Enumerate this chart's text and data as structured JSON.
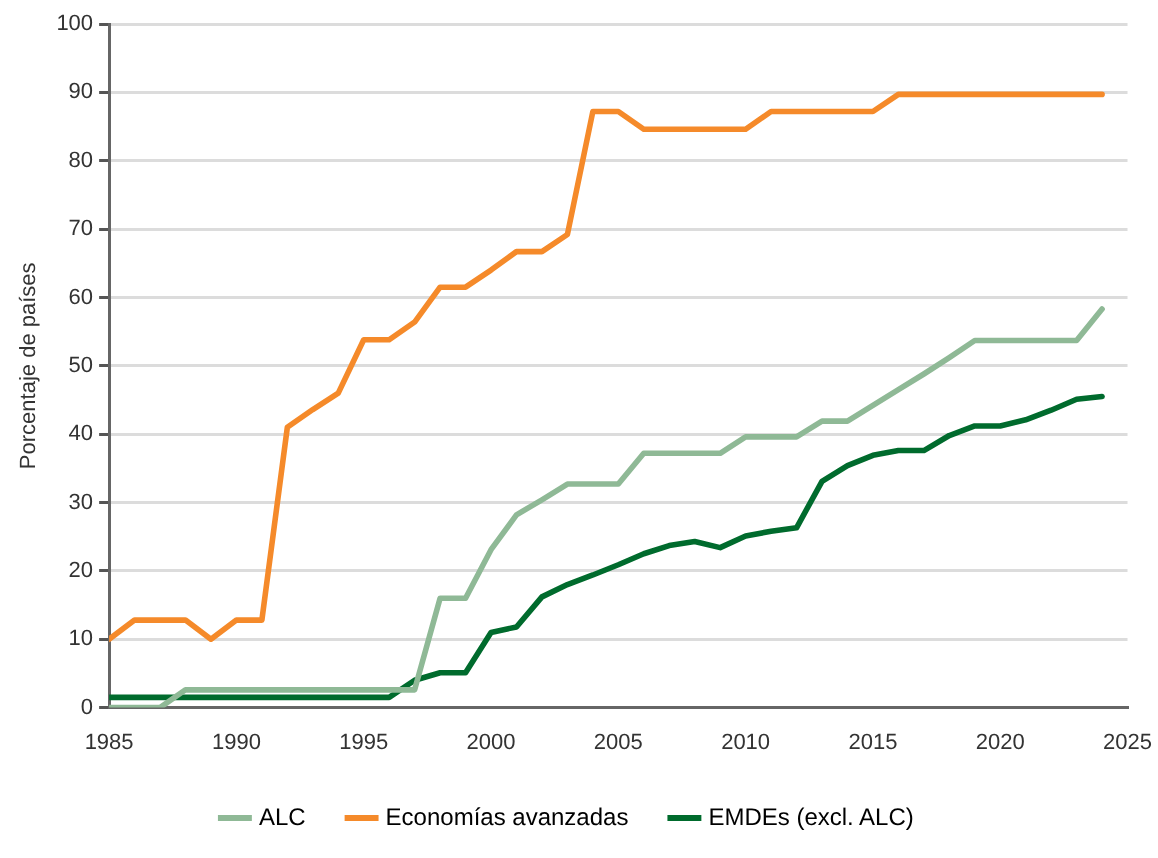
{
  "chart_data": {
    "type": "line",
    "ylabel": "Porcentaje de países",
    "x": [
      1985,
      1986,
      1987,
      1988,
      1989,
      1990,
      1991,
      1992,
      1993,
      1994,
      1995,
      1996,
      1997,
      1998,
      1999,
      2000,
      2001,
      2002,
      2003,
      2004,
      2005,
      2006,
      2007,
      2008,
      2009,
      2010,
      2011,
      2012,
      2013,
      2014,
      2015,
      2016,
      2017,
      2018,
      2019,
      2020,
      2021,
      2022,
      2023,
      2024
    ],
    "series": [
      {
        "name": "ALC",
        "color": "#8fb996",
        "values": [
          0,
          0,
          0,
          2.6,
          2.6,
          2.6,
          2.6,
          2.6,
          2.6,
          2.6,
          2.6,
          2.6,
          2.6,
          16,
          16,
          23.1,
          28.2,
          30.4,
          32.7,
          32.7,
          32.7,
          37.2,
          37.2,
          37.2,
          37.2,
          39.6,
          39.6,
          39.6,
          41.9,
          41.9,
          44.2,
          46.5,
          48.8,
          51.2,
          53.7,
          53.7,
          53.7,
          53.7,
          53.7,
          58.3
        ]
      },
      {
        "name": "Economías avanzadas",
        "color": "#f58a2a",
        "values": [
          10,
          12.8,
          12.8,
          12.8,
          10,
          12.8,
          12.8,
          41,
          43.6,
          46,
          53.8,
          53.8,
          56.4,
          61.5,
          61.5,
          64,
          66.7,
          66.7,
          69.2,
          87.2,
          87.2,
          84.6,
          84.6,
          84.6,
          84.6,
          84.6,
          87.2,
          87.2,
          87.2,
          87.2,
          87.2,
          89.7,
          89.7,
          89.7,
          89.7,
          89.7,
          89.7,
          89.7,
          89.7,
          89.7
        ]
      },
      {
        "name": "EMDEs (excl. ALC)",
        "color": "#006b2d",
        "values": [
          1.5,
          1.5,
          1.5,
          1.5,
          1.5,
          1.5,
          1.5,
          1.5,
          1.5,
          1.5,
          1.5,
          1.5,
          4,
          5.1,
          5.1,
          11,
          11.8,
          16.2,
          18,
          19.4,
          20.9,
          22.5,
          23.7,
          24.3,
          23.4,
          25.1,
          25.8,
          26.3,
          33.1,
          35.4,
          36.9,
          37.6,
          37.6,
          39.8,
          41.2,
          41.2,
          42.1,
          43.5,
          45.1,
          45.5
        ]
      }
    ],
    "xlim": [
      1985,
      2025
    ],
    "xticks": [
      1985,
      1990,
      1995,
      2000,
      2005,
      2010,
      2015,
      2020,
      2025
    ],
    "ylim": [
      0,
      100
    ],
    "yticks": [
      0,
      10,
      20,
      30,
      40,
      50,
      60,
      70,
      80,
      90,
      100
    ],
    "grid": "y",
    "legend": "bottom",
    "marker": "none",
    "line_style": "solid"
  }
}
